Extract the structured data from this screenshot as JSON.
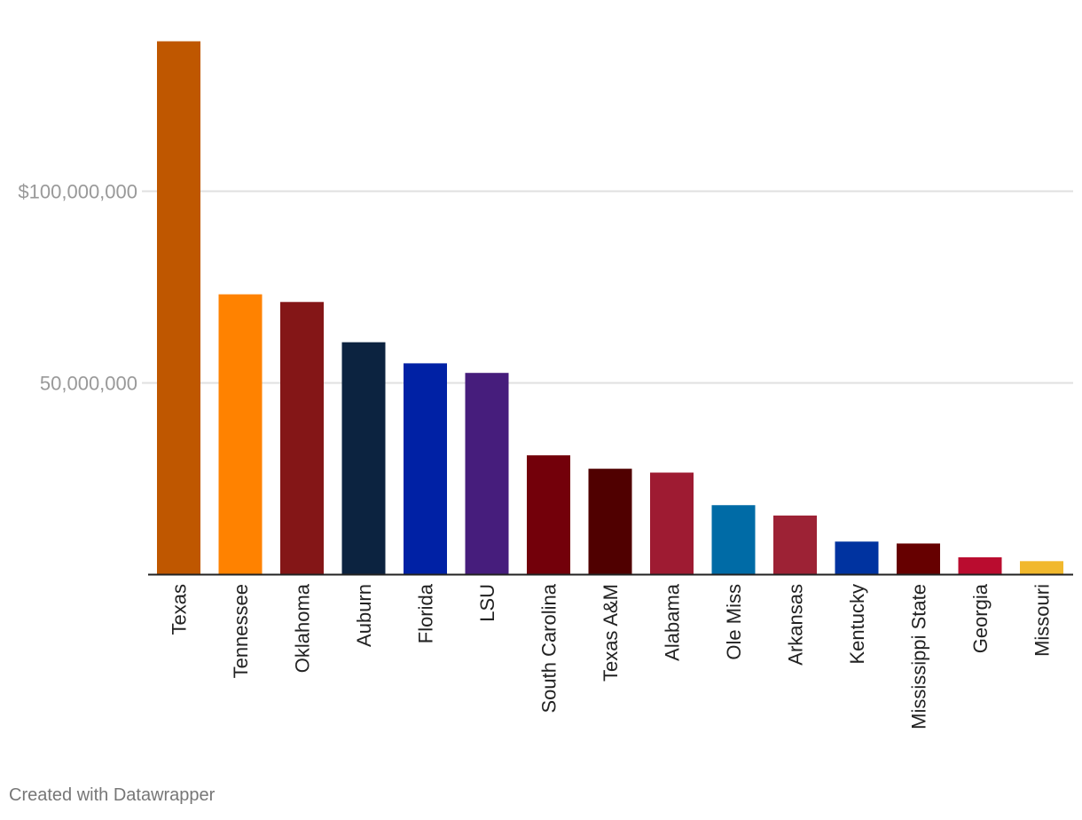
{
  "chart_data": {
    "type": "bar",
    "categories": [
      "Texas",
      "Tennessee",
      "Oklahoma",
      "Auburn",
      "Florida",
      "LSU",
      "South Carolina",
      "Texas A&M",
      "Alabama",
      "Ole Miss",
      "Arkansas",
      "Kentucky",
      "Mississippi State",
      "Georgia",
      "Missouri"
    ],
    "values": [
      139000000,
      73000000,
      71000000,
      60500000,
      55000000,
      52500000,
      31000000,
      27500000,
      26500000,
      18000000,
      15300000,
      8500000,
      8000000,
      4400000,
      3400000
    ],
    "colors": [
      "#bf5700",
      "#ff8200",
      "#841617",
      "#0c2340",
      "#0021a5",
      "#461d7c",
      "#73000a",
      "#500000",
      "#9e1b32",
      "#006ba6",
      "#9d2235",
      "#0033a0",
      "#660000",
      "#ba0c2f",
      "#f1b82d"
    ],
    "y_ticks": [
      {
        "value": 50000000,
        "label": "50,000,000"
      },
      {
        "value": 100000000,
        "label": "$100,000,000"
      }
    ],
    "ylim": [
      0,
      140000000
    ],
    "title": "",
    "xlabel": "",
    "ylabel": "",
    "grid": true
  },
  "footer": {
    "credit": "Created with Datawrapper"
  }
}
